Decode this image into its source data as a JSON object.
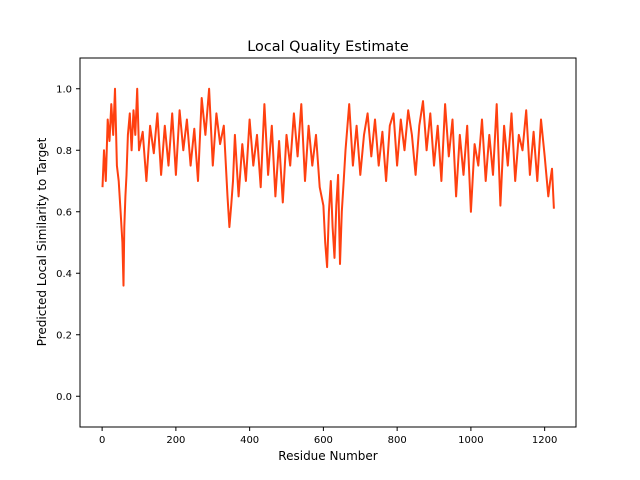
{
  "chart_data": {
    "type": "line",
    "title": "Local Quality Estimate",
    "xlabel": "Residue Number",
    "ylabel": "Predicted Local Similarity to Target",
    "xlim": [
      -60,
      1285
    ],
    "ylim": [
      -0.1,
      1.1
    ],
    "x_ticks": [
      0,
      200,
      400,
      600,
      800,
      1000,
      1200
    ],
    "y_ticks": [
      0.0,
      0.2,
      0.4,
      0.6,
      0.8,
      1.0
    ],
    "x_tick_labels": [
      "0",
      "200",
      "400",
      "600",
      "800",
      "1000",
      "1200"
    ],
    "y_tick_labels": [
      "0.0",
      "0.2",
      "0.4",
      "0.6",
      "0.8",
      "1.0"
    ],
    "grid": false,
    "series": [
      {
        "color": "#ff4010",
        "x": [
          1,
          5,
          10,
          15,
          20,
          25,
          30,
          35,
          40,
          45,
          50,
          55,
          58,
          60,
          63,
          66,
          70,
          75,
          80,
          85,
          90,
          95,
          100,
          110,
          120,
          130,
          140,
          150,
          160,
          170,
          180,
          190,
          200,
          210,
          220,
          230,
          240,
          250,
          260,
          270,
          280,
          290,
          300,
          310,
          320,
          330,
          340,
          345,
          350,
          355,
          360,
          370,
          380,
          390,
          400,
          410,
          420,
          430,
          440,
          450,
          460,
          470,
          480,
          490,
          500,
          510,
          520,
          530,
          540,
          550,
          560,
          570,
          580,
          590,
          600,
          605,
          610,
          615,
          620,
          625,
          630,
          635,
          640,
          645,
          650,
          655,
          660,
          670,
          680,
          690,
          700,
          710,
          720,
          730,
          740,
          750,
          760,
          770,
          780,
          790,
          800,
          810,
          820,
          830,
          840,
          850,
          860,
          870,
          880,
          890,
          900,
          910,
          920,
          930,
          940,
          950,
          960,
          970,
          980,
          990,
          1000,
          1010,
          1020,
          1030,
          1040,
          1050,
          1060,
          1070,
          1080,
          1090,
          1100,
          1110,
          1120,
          1130,
          1140,
          1150,
          1160,
          1170,
          1180,
          1190,
          1200,
          1210,
          1215,
          1220,
          1225
        ],
        "y": [
          0.68,
          0.8,
          0.7,
          0.9,
          0.83,
          0.95,
          0.85,
          1.0,
          0.75,
          0.7,
          0.6,
          0.5,
          0.36,
          0.55,
          0.65,
          0.72,
          0.85,
          0.92,
          0.8,
          0.93,
          0.85,
          1.0,
          0.8,
          0.86,
          0.7,
          0.88,
          0.79,
          0.92,
          0.72,
          0.88,
          0.75,
          0.92,
          0.72,
          0.93,
          0.8,
          0.9,
          0.75,
          0.87,
          0.7,
          0.97,
          0.85,
          1.0,
          0.75,
          0.92,
          0.82,
          0.88,
          0.65,
          0.55,
          0.62,
          0.7,
          0.85,
          0.65,
          0.82,
          0.7,
          0.9,
          0.75,
          0.85,
          0.68,
          0.95,
          0.72,
          0.88,
          0.65,
          0.83,
          0.63,
          0.85,
          0.75,
          0.92,
          0.78,
          0.95,
          0.7,
          0.88,
          0.75,
          0.85,
          0.68,
          0.62,
          0.5,
          0.42,
          0.6,
          0.7,
          0.55,
          0.45,
          0.62,
          0.72,
          0.43,
          0.6,
          0.7,
          0.8,
          0.95,
          0.75,
          0.88,
          0.72,
          0.85,
          0.92,
          0.78,
          0.9,
          0.75,
          0.86,
          0.7,
          0.88,
          0.92,
          0.75,
          0.9,
          0.8,
          0.93,
          0.85,
          0.72,
          0.88,
          0.96,
          0.8,
          0.92,
          0.75,
          0.88,
          0.7,
          0.95,
          0.78,
          0.9,
          0.65,
          0.85,
          0.72,
          0.88,
          0.6,
          0.82,
          0.75,
          0.9,
          0.7,
          0.85,
          0.72,
          0.95,
          0.62,
          0.88,
          0.75,
          0.92,
          0.7,
          0.85,
          0.8,
          0.93,
          0.72,
          0.86,
          0.7,
          0.9,
          0.78,
          0.65,
          0.7,
          0.74,
          0.61
        ]
      }
    ]
  }
}
